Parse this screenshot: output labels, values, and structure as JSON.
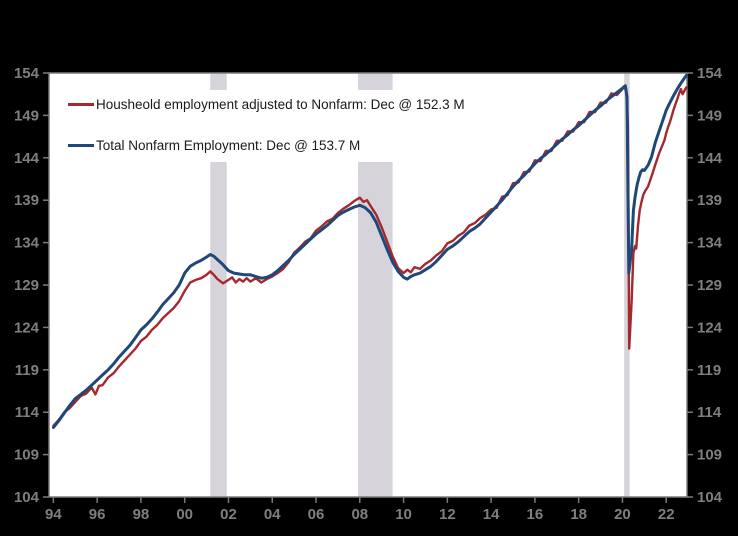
{
  "figure": {
    "background_color": "#000000",
    "plot_background_color": "#ffffff",
    "frame_color": "#7a7a7a",
    "tick_label_color": "#7f7f7f",
    "legend_background_color": "#ffffff",
    "legend_text_color": "#1a1a1a"
  },
  "chart_data": {
    "type": "line",
    "title": "",
    "xlabel": "",
    "ylabel": "",
    "x_unit": "year",
    "xlim": [
      1993.8,
      2022.95
    ],
    "ylim": [
      104,
      154
    ],
    "grid": false,
    "legend_position": "top-left",
    "y_ticks": [
      104,
      109,
      114,
      119,
      124,
      129,
      134,
      139,
      144,
      149,
      154
    ],
    "y_axis_sides": [
      "left",
      "right"
    ],
    "x_ticks": [
      1994,
      1996,
      1998,
      2000,
      2002,
      2004,
      2006,
      2008,
      2010,
      2012,
      2014,
      2016,
      2018,
      2020,
      2022
    ],
    "x_tick_labels": [
      "94",
      "96",
      "98",
      "00",
      "02",
      "04",
      "06",
      "08",
      "10",
      "12",
      "14",
      "16",
      "18",
      "20",
      "22"
    ],
    "band_color": "#D6D3DA",
    "recession_bands": [
      [
        2001.17,
        2001.92
      ],
      [
        2007.92,
        2009.5
      ],
      [
        2020.08,
        2020.33
      ]
    ],
    "series": [
      {
        "name": "Housheold employment adjusted to Nonfarm: Dec @ 152.3 M",
        "color": "#A5282C",
        "line_width": 2.4,
        "last_value_label": "Dec @ 152.3 M",
        "points": [
          [
            1994.0,
            112.4
          ],
          [
            1994.25,
            113.1
          ],
          [
            1994.5,
            114.0
          ],
          [
            1994.75,
            114.5
          ],
          [
            1995.0,
            115.2
          ],
          [
            1995.25,
            115.9
          ],
          [
            1995.5,
            116.2
          ],
          [
            1995.75,
            116.9
          ],
          [
            1995.92,
            116.1
          ],
          [
            1996.08,
            117.1
          ],
          [
            1996.25,
            117.2
          ],
          [
            1996.5,
            118.1
          ],
          [
            1996.75,
            118.6
          ],
          [
            1997.0,
            119.4
          ],
          [
            1997.25,
            120.1
          ],
          [
            1997.5,
            120.8
          ],
          [
            1997.75,
            121.5
          ],
          [
            1998.0,
            122.4
          ],
          [
            1998.25,
            122.9
          ],
          [
            1998.5,
            123.7
          ],
          [
            1998.75,
            124.3
          ],
          [
            1999.0,
            125.1
          ],
          [
            1999.25,
            125.7
          ],
          [
            1999.5,
            126.3
          ],
          [
            1999.75,
            127.1
          ],
          [
            2000.0,
            128.3
          ],
          [
            2000.25,
            129.3
          ],
          [
            2000.5,
            129.6
          ],
          [
            2000.75,
            129.8
          ],
          [
            2001.0,
            130.2
          ],
          [
            2001.17,
            130.6
          ],
          [
            2001.33,
            130.2
          ],
          [
            2001.5,
            129.7
          ],
          [
            2001.75,
            129.2
          ],
          [
            2002.0,
            129.6
          ],
          [
            2002.17,
            129.9
          ],
          [
            2002.33,
            129.3
          ],
          [
            2002.5,
            129.7
          ],
          [
            2002.67,
            129.4
          ],
          [
            2002.83,
            129.8
          ],
          [
            2003.0,
            129.4
          ],
          [
            2003.25,
            129.8
          ],
          [
            2003.5,
            129.3
          ],
          [
            2003.75,
            129.7
          ],
          [
            2004.0,
            130.0
          ],
          [
            2004.25,
            130.4
          ],
          [
            2004.5,
            130.9
          ],
          [
            2004.75,
            131.7
          ],
          [
            2005.0,
            132.8
          ],
          [
            2005.25,
            133.4
          ],
          [
            2005.5,
            134.1
          ],
          [
            2005.75,
            134.5
          ],
          [
            2006.0,
            135.4
          ],
          [
            2006.25,
            135.9
          ],
          [
            2006.5,
            136.5
          ],
          [
            2006.75,
            136.8
          ],
          [
            2007.0,
            137.5
          ],
          [
            2007.25,
            138.0
          ],
          [
            2007.5,
            138.4
          ],
          [
            2007.75,
            138.9
          ],
          [
            2008.0,
            139.3
          ],
          [
            2008.17,
            138.8
          ],
          [
            2008.33,
            139.0
          ],
          [
            2008.5,
            138.3
          ],
          [
            2008.75,
            137.3
          ],
          [
            2009.0,
            135.8
          ],
          [
            2009.25,
            134.1
          ],
          [
            2009.5,
            132.4
          ],
          [
            2009.75,
            131.0
          ],
          [
            2010.0,
            130.4
          ],
          [
            2010.17,
            130.8
          ],
          [
            2010.33,
            130.5
          ],
          [
            2010.5,
            131.1
          ],
          [
            2010.75,
            130.9
          ],
          [
            2011.0,
            131.5
          ],
          [
            2011.25,
            131.9
          ],
          [
            2011.5,
            132.5
          ],
          [
            2011.75,
            133.0
          ],
          [
            2012.0,
            133.9
          ],
          [
            2012.25,
            134.2
          ],
          [
            2012.5,
            134.8
          ],
          [
            2012.75,
            135.2
          ],
          [
            2013.0,
            136.0
          ],
          [
            2013.25,
            136.3
          ],
          [
            2013.5,
            136.9
          ],
          [
            2013.75,
            137.3
          ],
          [
            2014.0,
            137.9
          ],
          [
            2014.25,
            138.1
          ],
          [
            2014.5,
            139.4
          ],
          [
            2014.75,
            139.6
          ],
          [
            2015.0,
            141.0
          ],
          [
            2015.25,
            141.1
          ],
          [
            2015.5,
            142.3
          ],
          [
            2015.75,
            142.4
          ],
          [
            2016.0,
            143.7
          ],
          [
            2016.25,
            143.6
          ],
          [
            2016.5,
            144.8
          ],
          [
            2016.75,
            144.8
          ],
          [
            2017.0,
            146.0
          ],
          [
            2017.25,
            146.0
          ],
          [
            2017.5,
            147.1
          ],
          [
            2017.75,
            147.1
          ],
          [
            2018.0,
            148.2
          ],
          [
            2018.25,
            148.2
          ],
          [
            2018.5,
            149.4
          ],
          [
            2018.75,
            149.4
          ],
          [
            2019.0,
            150.5
          ],
          [
            2019.25,
            150.5
          ],
          [
            2019.5,
            151.6
          ],
          [
            2019.75,
            151.4
          ],
          [
            2020.0,
            152.1
          ],
          [
            2020.1,
            152.4
          ],
          [
            2020.17,
            151.8
          ],
          [
            2020.25,
            148.0
          ],
          [
            2020.31,
            121.5
          ],
          [
            2020.42,
            127.0
          ],
          [
            2020.5,
            132.8
          ],
          [
            2020.58,
            133.6
          ],
          [
            2020.63,
            133.3
          ],
          [
            2020.71,
            136.0
          ],
          [
            2020.79,
            137.8
          ],
          [
            2020.87,
            138.8
          ],
          [
            2020.95,
            139.6
          ],
          [
            2021.04,
            140.1
          ],
          [
            2021.17,
            140.6
          ],
          [
            2021.33,
            141.8
          ],
          [
            2021.5,
            143.2
          ],
          [
            2021.67,
            144.5
          ],
          [
            2021.83,
            145.5
          ],
          [
            2021.92,
            146.1
          ],
          [
            2022.0,
            146.9
          ],
          [
            2022.08,
            147.6
          ],
          [
            2022.17,
            148.2
          ],
          [
            2022.25,
            148.9
          ],
          [
            2022.33,
            149.6
          ],
          [
            2022.42,
            150.3
          ],
          [
            2022.5,
            150.9
          ],
          [
            2022.58,
            151.5
          ],
          [
            2022.67,
            152.1
          ],
          [
            2022.75,
            151.5
          ],
          [
            2022.83,
            151.9
          ],
          [
            2022.92,
            152.3
          ]
        ]
      },
      {
        "name": "Total Nonfarm Employment: Dec @ 153.7 M",
        "color": "#1F4878",
        "line_width": 3,
        "last_value_label": "Dec @ 153.7 M",
        "points": [
          [
            1994.0,
            112.2
          ],
          [
            1994.25,
            113.0
          ],
          [
            1994.5,
            113.9
          ],
          [
            1994.75,
            114.8
          ],
          [
            1995.0,
            115.6
          ],
          [
            1995.25,
            116.1
          ],
          [
            1995.5,
            116.6
          ],
          [
            1995.75,
            117.2
          ],
          [
            1996.0,
            117.8
          ],
          [
            1996.25,
            118.4
          ],
          [
            1996.5,
            119.0
          ],
          [
            1996.75,
            119.7
          ],
          [
            1997.0,
            120.5
          ],
          [
            1997.25,
            121.2
          ],
          [
            1997.5,
            121.9
          ],
          [
            1997.75,
            122.8
          ],
          [
            1998.0,
            123.7
          ],
          [
            1998.25,
            124.3
          ],
          [
            1998.5,
            125.0
          ],
          [
            1998.75,
            125.8
          ],
          [
            1999.0,
            126.7
          ],
          [
            1999.25,
            127.4
          ],
          [
            1999.5,
            128.1
          ],
          [
            1999.75,
            129.0
          ],
          [
            2000.0,
            130.4
          ],
          [
            2000.25,
            131.2
          ],
          [
            2000.5,
            131.6
          ],
          [
            2000.75,
            131.9
          ],
          [
            2001.0,
            132.3
          ],
          [
            2001.17,
            132.6
          ],
          [
            2001.33,
            132.4
          ],
          [
            2001.5,
            132.0
          ],
          [
            2001.75,
            131.4
          ],
          [
            2001.92,
            130.9
          ],
          [
            2002.0,
            130.7
          ],
          [
            2002.25,
            130.4
          ],
          [
            2002.5,
            130.3
          ],
          [
            2002.75,
            130.2
          ],
          [
            2003.0,
            130.2
          ],
          [
            2003.25,
            130.0
          ],
          [
            2003.5,
            129.8
          ],
          [
            2003.75,
            129.9
          ],
          [
            2004.0,
            130.2
          ],
          [
            2004.25,
            130.7
          ],
          [
            2004.5,
            131.3
          ],
          [
            2004.75,
            131.9
          ],
          [
            2005.0,
            132.6
          ],
          [
            2005.25,
            133.2
          ],
          [
            2005.5,
            133.8
          ],
          [
            2005.75,
            134.4
          ],
          [
            2006.0,
            135.0
          ],
          [
            2006.25,
            135.5
          ],
          [
            2006.5,
            136.0
          ],
          [
            2006.75,
            136.6
          ],
          [
            2007.0,
            137.2
          ],
          [
            2007.25,
            137.6
          ],
          [
            2007.5,
            137.9
          ],
          [
            2007.75,
            138.2
          ],
          [
            2008.0,
            138.4
          ],
          [
            2008.25,
            138.1
          ],
          [
            2008.5,
            137.5
          ],
          [
            2008.75,
            136.4
          ],
          [
            2009.0,
            134.8
          ],
          [
            2009.25,
            133.2
          ],
          [
            2009.5,
            131.7
          ],
          [
            2009.75,
            130.6
          ],
          [
            2010.0,
            129.9
          ],
          [
            2010.17,
            129.7
          ],
          [
            2010.33,
            130.0
          ],
          [
            2010.5,
            130.2
          ],
          [
            2010.75,
            130.4
          ],
          [
            2011.0,
            130.8
          ],
          [
            2011.25,
            131.2
          ],
          [
            2011.5,
            131.8
          ],
          [
            2011.75,
            132.5
          ],
          [
            2012.0,
            133.2
          ],
          [
            2012.25,
            133.6
          ],
          [
            2012.5,
            134.1
          ],
          [
            2012.75,
            134.7
          ],
          [
            2013.0,
            135.3
          ],
          [
            2013.25,
            135.7
          ],
          [
            2013.5,
            136.2
          ],
          [
            2013.75,
            136.9
          ],
          [
            2014.0,
            137.6
          ],
          [
            2014.25,
            138.3
          ],
          [
            2014.5,
            139.0
          ],
          [
            2014.75,
            139.8
          ],
          [
            2015.0,
            140.6
          ],
          [
            2015.25,
            141.3
          ],
          [
            2015.5,
            141.9
          ],
          [
            2015.75,
            142.6
          ],
          [
            2016.0,
            143.3
          ],
          [
            2016.25,
            143.9
          ],
          [
            2016.5,
            144.4
          ],
          [
            2016.75,
            145.0
          ],
          [
            2017.0,
            145.6
          ],
          [
            2017.25,
            146.2
          ],
          [
            2017.5,
            146.7
          ],
          [
            2017.75,
            147.3
          ],
          [
            2018.0,
            147.8
          ],
          [
            2018.25,
            148.4
          ],
          [
            2018.5,
            149.0
          ],
          [
            2018.75,
            149.6
          ],
          [
            2019.0,
            150.1
          ],
          [
            2019.25,
            150.7
          ],
          [
            2019.5,
            151.2
          ],
          [
            2019.75,
            151.7
          ],
          [
            2020.0,
            152.2
          ],
          [
            2020.13,
            152.5
          ],
          [
            2020.21,
            151.2
          ],
          [
            2020.29,
            130.4
          ],
          [
            2020.42,
            133.2
          ],
          [
            2020.5,
            137.8
          ],
          [
            2020.58,
            139.4
          ],
          [
            2020.67,
            140.8
          ],
          [
            2020.75,
            141.6
          ],
          [
            2020.83,
            142.3
          ],
          [
            2020.92,
            142.6
          ],
          [
            2021.0,
            142.5
          ],
          [
            2021.17,
            143.1
          ],
          [
            2021.33,
            144.1
          ],
          [
            2021.5,
            145.8
          ],
          [
            2021.67,
            147.1
          ],
          [
            2021.83,
            148.3
          ],
          [
            2021.92,
            149.0
          ],
          [
            2022.0,
            149.6
          ],
          [
            2022.17,
            150.5
          ],
          [
            2022.33,
            151.3
          ],
          [
            2022.5,
            152.1
          ],
          [
            2022.67,
            152.8
          ],
          [
            2022.83,
            153.4
          ],
          [
            2022.92,
            153.7
          ]
        ]
      }
    ]
  }
}
